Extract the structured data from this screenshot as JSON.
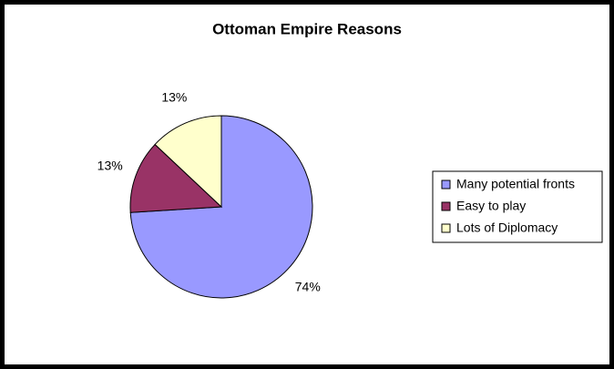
{
  "chart_data": {
    "type": "pie",
    "title": "Ottoman Empire Reasons",
    "categories": [
      "Many potential fronts",
      "Easy to play",
      "Lots of Diplomacy"
    ],
    "values": [
      74,
      13,
      13
    ],
    "value_labels": [
      "74%",
      "13%",
      "13%"
    ],
    "colors": [
      "#9999ff",
      "#993366",
      "#ffffcc"
    ],
    "legend": "right"
  }
}
